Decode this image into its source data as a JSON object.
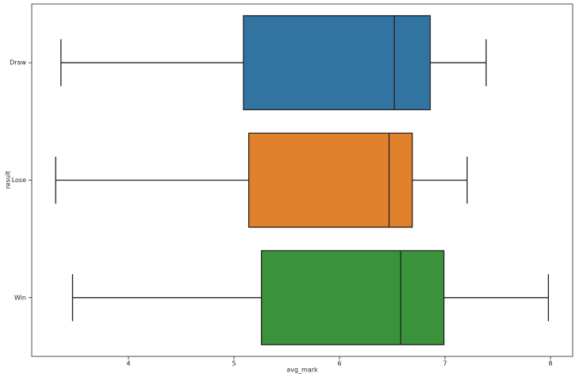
{
  "chart_data": {
    "type": "box",
    "orientation": "horizontal",
    "xlabel": "avg_mark",
    "ylabel": "result",
    "categories": [
      "Draw",
      "Lose",
      "Win"
    ],
    "colors": [
      "#3274a1",
      "#e1812c",
      "#3a923a"
    ],
    "low": [
      3.36,
      3.31,
      3.47
    ],
    "q1": [
      5.09,
      5.14,
      5.26
    ],
    "median": [
      6.52,
      6.47,
      6.58
    ],
    "q3": [
      6.86,
      6.69,
      6.99
    ],
    "high": [
      7.39,
      7.21,
      7.98
    ],
    "xlim": [
      3.083,
      8.21
    ],
    "xticks": [
      4,
      5,
      6,
      7,
      8
    ]
  }
}
